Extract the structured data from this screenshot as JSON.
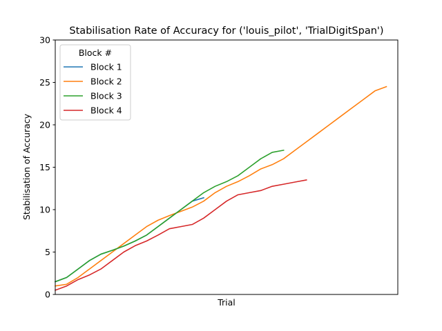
{
  "chart_data": {
    "type": "line",
    "title": "Stabilisation Rate of Accuracy for ('louis_pilot', 'TrialDigitSpan')",
    "xlabel": "Trial",
    "ylabel": "Stabilisation of Accuracy",
    "xlim": [
      0,
      30
    ],
    "ylim": [
      0,
      30
    ],
    "yticks": [
      0,
      5,
      10,
      15,
      20,
      25,
      30
    ],
    "xticks_shown": false,
    "grid": false,
    "legend": {
      "title": "Block #",
      "placement": "top-left"
    },
    "series": [
      {
        "name": "Block 1",
        "color": "#1f77b4",
        "x": [
          0,
          1,
          2,
          3,
          4,
          5,
          6,
          7,
          8,
          9,
          10,
          11,
          12,
          13
        ],
        "y": [
          1.5,
          2.0,
          3.0,
          4.0,
          4.75,
          5.2,
          5.7,
          6.3,
          7.0,
          8.0,
          9.0,
          10.0,
          11.0,
          11.4
        ]
      },
      {
        "name": "Block 2",
        "color": "#ff7f0e",
        "x": [
          0,
          1,
          2,
          3,
          4,
          5,
          6,
          7,
          8,
          9,
          10,
          11,
          12,
          13,
          14,
          15,
          16,
          17,
          18,
          19,
          20,
          21,
          22,
          23,
          24,
          25,
          26,
          27,
          28,
          29
        ],
        "y": [
          1.0,
          1.2,
          2.0,
          3.0,
          4.0,
          5.0,
          6.0,
          7.0,
          8.0,
          8.75,
          9.3,
          9.8,
          10.3,
          11.0,
          12.0,
          12.75,
          13.3,
          14.0,
          14.8,
          15.3,
          16.0,
          17.0,
          18.0,
          19.0,
          20.0,
          21.0,
          22.0,
          23.0,
          24.0,
          24.5
        ]
      },
      {
        "name": "Block 3",
        "color": "#2ca02c",
        "x": [
          0,
          1,
          2,
          3,
          4,
          5,
          6,
          7,
          8,
          9,
          10,
          11,
          12,
          13,
          14,
          15,
          16,
          17,
          18,
          19,
          20
        ],
        "y": [
          1.5,
          2.0,
          3.0,
          4.0,
          4.75,
          5.2,
          5.7,
          6.3,
          7.0,
          8.0,
          9.0,
          10.0,
          11.0,
          12.0,
          12.75,
          13.3,
          14.0,
          15.0,
          16.0,
          16.75,
          17.0
        ]
      },
      {
        "name": "Block 4",
        "color": "#d62728",
        "x": [
          0,
          1,
          2,
          3,
          4,
          5,
          6,
          7,
          8,
          9,
          10,
          11,
          12,
          13,
          14,
          15,
          16,
          17,
          18,
          19,
          20,
          21,
          22
        ],
        "y": [
          0.5,
          1.0,
          1.75,
          2.3,
          3.0,
          4.0,
          5.0,
          5.75,
          6.3,
          7.0,
          7.75,
          8.0,
          8.25,
          9.0,
          10.0,
          11.0,
          11.75,
          12.0,
          12.25,
          12.75,
          13.0,
          13.25,
          13.5
        ]
      }
    ]
  }
}
